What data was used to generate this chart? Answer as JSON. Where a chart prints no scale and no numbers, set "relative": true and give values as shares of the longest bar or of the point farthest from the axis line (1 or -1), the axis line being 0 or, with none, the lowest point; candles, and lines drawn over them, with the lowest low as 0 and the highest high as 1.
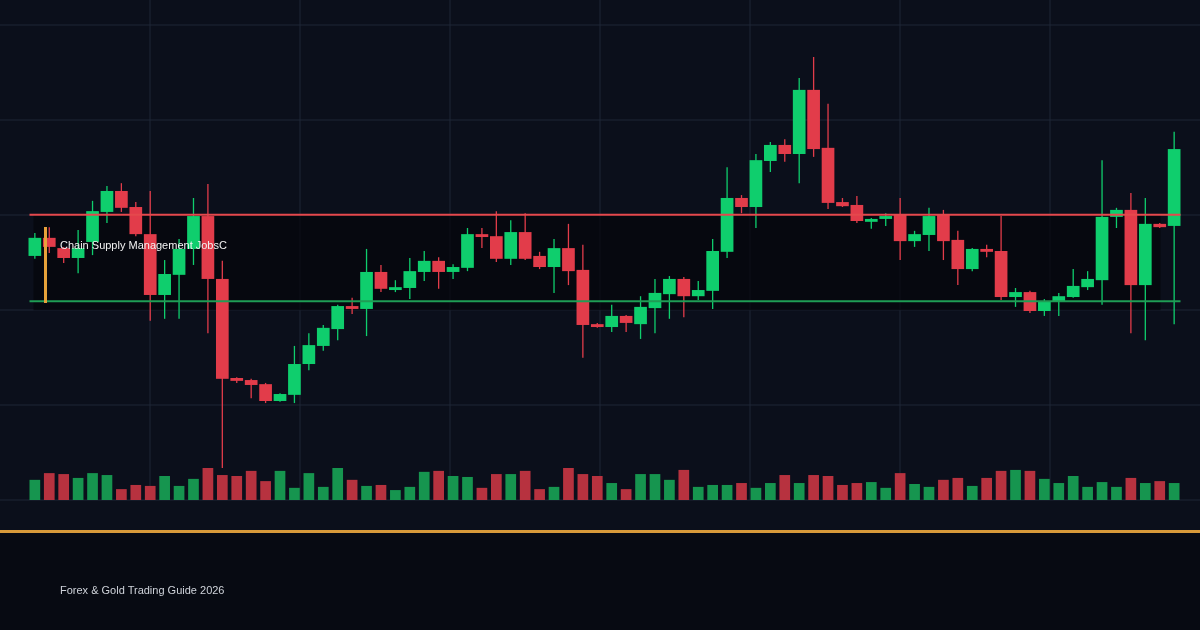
{
  "chart_data": [
    {
      "type": "candlestick",
      "relative": true,
      "grid": true,
      "categories": [
        null,
        null,
        null,
        null,
        null,
        null,
        null,
        null,
        null,
        null,
        null,
        null,
        null,
        null,
        null,
        null,
        null,
        null,
        null,
        null,
        null,
        null,
        null,
        null,
        null,
        null,
        null,
        null,
        null,
        null,
        null,
        null,
        null,
        null,
        null,
        null,
        null,
        null,
        null,
        null,
        null,
        null,
        null,
        null,
        null,
        null,
        null,
        null,
        null,
        null,
        null,
        null,
        null,
        null,
        null,
        null,
        null,
        null,
        null,
        null,
        null,
        null,
        null,
        null,
        null,
        null,
        null,
        null,
        null,
        null,
        null,
        null,
        null,
        null,
        null,
        null,
        null,
        null,
        null,
        null
      ],
      "ohlc": [
        [
          0.516,
          0.572,
          0.509,
          0.56
        ],
        [
          0.56,
          0.586,
          0.523,
          0.538
        ],
        [
          0.535,
          0.538,
          0.499,
          0.511
        ],
        [
          0.511,
          0.579,
          0.474,
          0.535
        ],
        [
          0.55,
          0.65,
          0.518,
          0.625
        ],
        [
          0.623,
          0.686,
          0.596,
          0.674
        ],
        [
          0.674,
          0.693,
          0.623,
          0.633
        ],
        [
          0.635,
          0.647,
          0.564,
          0.569
        ],
        [
          0.569,
          0.674,
          0.358,
          0.421
        ],
        [
          0.421,
          0.506,
          0.363,
          0.472
        ],
        [
          0.47,
          0.557,
          0.363,
          0.533
        ],
        [
          0.533,
          0.657,
          0.494,
          0.613
        ],
        [
          0.613,
          0.691,
          0.328,
          0.46
        ],
        [
          0.46,
          0.504,
          0,
          0.217
        ],
        [
          0.219,
          0.221,
          0.207,
          0.212
        ],
        [
          0.214,
          0.217,
          0.17,
          0.202
        ],
        [
          0.204,
          0.207,
          0.158,
          0.163
        ],
        [
          0.163,
          0.182,
          0.161,
          0.18
        ],
        [
          0.178,
          0.297,
          0.158,
          0.253
        ],
        [
          0.253,
          0.328,
          0.238,
          0.299
        ],
        [
          0.297,
          0.348,
          0.285,
          0.341
        ],
        [
          0.338,
          0.397,
          0.311,
          0.394
        ],
        [
          0.394,
          0.414,
          0.375,
          0.387
        ],
        [
          0.387,
          0.533,
          0.321,
          0.477
        ],
        [
          0.477,
          0.494,
          0.428,
          0.436
        ],
        [
          0.433,
          0.457,
          0.428,
          0.44
        ],
        [
          0.438,
          0.511,
          0.411,
          0.479
        ],
        [
          0.477,
          0.528,
          0.455,
          0.504
        ],
        [
          0.504,
          0.513,
          0.436,
          0.477
        ],
        [
          0.477,
          0.496,
          0.46,
          0.489
        ],
        [
          0.487,
          0.584,
          0.479,
          0.569
        ],
        [
          0.569,
          0.584,
          0.535,
          0.562
        ],
        [
          0.564,
          0.625,
          0.501,
          0.509
        ],
        [
          0.509,
          0.603,
          0.494,
          0.574
        ],
        [
          0.574,
          0.62,
          0.506,
          0.509
        ],
        [
          0.516,
          0.526,
          0.484,
          0.489
        ],
        [
          0.489,
          0.557,
          0.426,
          0.535
        ],
        [
          0.535,
          0.594,
          0.445,
          0.479
        ],
        [
          0.482,
          0.543,
          0.268,
          0.348
        ],
        [
          0.35,
          0.353,
          0.341,
          0.343
        ],
        [
          0.343,
          0.397,
          0.331,
          0.37
        ],
        [
          0.37,
          0.372,
          0.331,
          0.353
        ],
        [
          0.35,
          0.418,
          0.314,
          0.392
        ],
        [
          0.389,
          0.46,
          0.328,
          0.426
        ],
        [
          0.423,
          0.467,
          0.363,
          0.46
        ],
        [
          0.46,
          0.465,
          0.367,
          0.418
        ],
        [
          0.418,
          0.455,
          0.409,
          0.433
        ],
        [
          0.431,
          0.557,
          0.387,
          0.528
        ],
        [
          0.526,
          0.732,
          0.511,
          0.657
        ],
        [
          0.657,
          0.664,
          0.62,
          0.635
        ],
        [
          0.635,
          0.764,
          0.584,
          0.749
        ],
        [
          0.747,
          0.793,
          0.72,
          0.786
        ],
        [
          0.786,
          0.8,
          0.745,
          0.764
        ],
        [
          0.764,
          0.949,
          0.693,
          0.92
        ],
        [
          0.92,
          1,
          0.757,
          0.776
        ],
        [
          0.779,
          0.886,
          0.63,
          0.645
        ],
        [
          0.647,
          0.657,
          0.635,
          0.637
        ],
        [
          0.64,
          0.662,
          0.596,
          0.601
        ],
        [
          0.599,
          0.608,
          0.582,
          0.606
        ],
        [
          0.606,
          0.62,
          0.589,
          0.613
        ],
        [
          0.616,
          0.657,
          0.506,
          0.552
        ],
        [
          0.552,
          0.577,
          0.538,
          0.569
        ],
        [
          0.567,
          0.633,
          0.528,
          0.613
        ],
        [
          0.616,
          0.628,
          0.506,
          0.552
        ],
        [
          0.555,
          0.577,
          0.445,
          0.484
        ],
        [
          0.484,
          0.535,
          0.479,
          0.533
        ],
        [
          0.533,
          0.543,
          0.513,
          0.526
        ],
        [
          0.528,
          0.613,
          0.409,
          0.416
        ],
        [
          0.416,
          0.438,
          0.392,
          0.428
        ],
        [
          0.428,
          0.431,
          0.377,
          0.382
        ],
        [
          0.382,
          0.411,
          0.37,
          0.404
        ],
        [
          0.404,
          0.426,
          0.37,
          0.418
        ],
        [
          0.416,
          0.484,
          0.414,
          0.443
        ],
        [
          0.44,
          0.479,
          0.433,
          0.46
        ],
        [
          0.457,
          0.749,
          0.397,
          0.611
        ],
        [
          0.611,
          0.633,
          0.584,
          0.628
        ],
        [
          0.628,
          0.669,
          0.328,
          0.445
        ],
        [
          0.445,
          0.657,
          0.311,
          0.594
        ],
        [
          0.594,
          0.596,
          0.584,
          0.586
        ],
        [
          0.589,
          0.818,
          0.35,
          0.776
        ]
      ],
      "colors": [
        "#0fce6d",
        "#e23c4a",
        "#e23c4a",
        "#0fce6d",
        "#0fce6d",
        "#0fce6d",
        "#e23c4a",
        "#e23c4a",
        "#e23c4a",
        "#0fce6d",
        "#0fce6d",
        "#0fce6d",
        "#e23c4a",
        "#e23c4a",
        "#e23c4a",
        "#e23c4a",
        "#e23c4a",
        "#0fce6d",
        "#0fce6d",
        "#0fce6d",
        "#0fce6d",
        "#0fce6d",
        "#e23c4a",
        "#0fce6d",
        "#e23c4a",
        "#0fce6d",
        "#0fce6d",
        "#0fce6d",
        "#e23c4a",
        "#0fce6d",
        "#0fce6d",
        "#e23c4a",
        "#e23c4a",
        "#0fce6d",
        "#e23c4a",
        "#e23c4a",
        "#0fce6d",
        "#e23c4a",
        "#e23c4a",
        "#e23c4a",
        "#0fce6d",
        "#e23c4a",
        "#0fce6d",
        "#0fce6d",
        "#0fce6d",
        "#e23c4a",
        "#0fce6d",
        "#0fce6d",
        "#0fce6d",
        "#e23c4a",
        "#0fce6d",
        "#0fce6d",
        "#e23c4a",
        "#0fce6d",
        "#e23c4a",
        "#e23c4a",
        "#e23c4a",
        "#e23c4a",
        "#0fce6d",
        "#0fce6d",
        "#e23c4a",
        "#0fce6d",
        "#0fce6d",
        "#e23c4a",
        "#e23c4a",
        "#0fce6d",
        "#e23c4a",
        "#e23c4a",
        "#0fce6d",
        "#e23c4a",
        "#0fce6d",
        "#0fce6d",
        "#0fce6d",
        "#0fce6d",
        "#0fce6d",
        "#0fce6d",
        "#e23c4a",
        "#0fce6d",
        "#e23c4a",
        "#0fce6d"
      ],
      "ref_lines": [
        {
          "axis": "y",
          "value": 0.616,
          "color": "#e5484d"
        },
        {
          "axis": "y",
          "value": 0.406,
          "color": "#1f9d55"
        }
      ],
      "bands": [
        {
          "axis": "y",
          "from": 0.384,
          "to": 0.616,
          "color": "#05070c"
        }
      ],
      "annotations": [
        "Chain Supply Management JobsC",
        "Forex & Gold Trading Guide 2026"
      ]
    },
    {
      "type": "bar",
      "relative": true,
      "categories": [
        null,
        null,
        null,
        null,
        null,
        null,
        null,
        null,
        null,
        null,
        null,
        null,
        null,
        null,
        null,
        null,
        null,
        null,
        null,
        null,
        null,
        null,
        null,
        null,
        null,
        null,
        null,
        null,
        null,
        null,
        null,
        null,
        null,
        null,
        null,
        null,
        null,
        null,
        null,
        null,
        null,
        null,
        null,
        null,
        null,
        null,
        null,
        null,
        null,
        null,
        null,
        null,
        null,
        null,
        null,
        null,
        null,
        null,
        null,
        null,
        null,
        null,
        null,
        null,
        null,
        null,
        null,
        null,
        null,
        null,
        null,
        null,
        null,
        null,
        null,
        null,
        null,
        null,
        null,
        null
      ],
      "values": [
        0.63,
        0.84,
        0.81,
        0.69,
        0.84,
        0.78,
        0.34,
        0.47,
        0.44,
        0.75,
        0.44,
        0.66,
        1,
        0.78,
        0.75,
        0.91,
        0.59,
        0.91,
        0.38,
        0.84,
        0.41,
        1,
        0.63,
        0.44,
        0.47,
        0.31,
        0.41,
        0.88,
        0.91,
        0.75,
        0.72,
        0.38,
        0.81,
        0.81,
        0.91,
        0.34,
        0.41,
        1,
        0.81,
        0.75,
        0.53,
        0.34,
        0.81,
        0.81,
        0.63,
        0.94,
        0.41,
        0.47,
        0.47,
        0.53,
        0.38,
        0.53,
        0.78,
        0.53,
        0.78,
        0.75,
        0.47,
        0.53,
        0.56,
        0.38,
        0.84,
        0.5,
        0.41,
        0.63,
        0.69,
        0.44,
        0.69,
        0.91,
        0.94,
        0.91,
        0.66,
        0.53,
        0.75,
        0.41,
        0.56,
        0.41,
        0.69,
        0.53,
        0.59,
        0.53
      ],
      "colors": [
        "#16954f",
        "#b7323f",
        "#b7323f",
        "#16954f",
        "#16954f",
        "#16954f",
        "#b7323f",
        "#b7323f",
        "#b7323f",
        "#16954f",
        "#16954f",
        "#16954f",
        "#b7323f",
        "#b7323f",
        "#b7323f",
        "#b7323f",
        "#b7323f",
        "#16954f",
        "#16954f",
        "#16954f",
        "#16954f",
        "#16954f",
        "#b7323f",
        "#16954f",
        "#b7323f",
        "#16954f",
        "#16954f",
        "#16954f",
        "#b7323f",
        "#16954f",
        "#16954f",
        "#b7323f",
        "#b7323f",
        "#16954f",
        "#b7323f",
        "#b7323f",
        "#16954f",
        "#b7323f",
        "#b7323f",
        "#b7323f",
        "#16954f",
        "#b7323f",
        "#16954f",
        "#16954f",
        "#16954f",
        "#b7323f",
        "#16954f",
        "#16954f",
        "#16954f",
        "#b7323f",
        "#16954f",
        "#16954f",
        "#b7323f",
        "#16954f",
        "#b7323f",
        "#b7323f",
        "#b7323f",
        "#b7323f",
        "#16954f",
        "#16954f",
        "#b7323f",
        "#16954f",
        "#16954f",
        "#b7323f",
        "#b7323f",
        "#16954f",
        "#b7323f",
        "#b7323f",
        "#16954f",
        "#b7323f",
        "#16954f",
        "#16954f",
        "#16954f",
        "#16954f",
        "#16954f",
        "#16954f",
        "#b7323f",
        "#16954f",
        "#b7323f",
        "#16954f"
      ]
    }
  ]
}
